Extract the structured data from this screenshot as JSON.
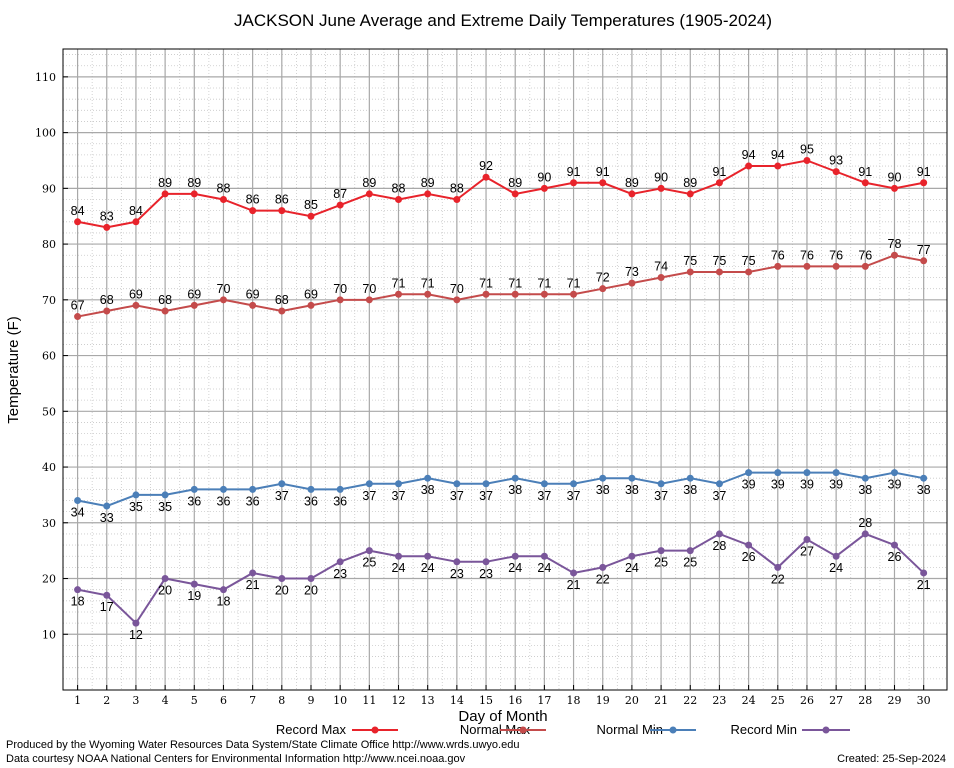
{
  "chart_data": {
    "type": "line",
    "title": "JACKSON June Average and Extreme Daily Temperatures (1905-2024)",
    "xlabel": "Day of Month",
    "ylabel": "Temperature (F)",
    "x": [
      1,
      2,
      3,
      4,
      5,
      6,
      7,
      8,
      9,
      10,
      11,
      12,
      13,
      14,
      15,
      16,
      17,
      18,
      19,
      20,
      21,
      22,
      23,
      24,
      25,
      26,
      27,
      28,
      29,
      30
    ],
    "xlim": [
      0.5,
      30.8
    ],
    "ylim": [
      0,
      115
    ],
    "yticks": [
      10,
      20,
      30,
      40,
      50,
      60,
      70,
      80,
      90,
      100,
      110
    ],
    "grid": true,
    "legend_position": "bottom",
    "series": [
      {
        "name": "Record Max",
        "color": "#e8232b",
        "values": [
          84,
          83,
          84,
          89,
          89,
          88,
          86,
          86,
          85,
          87,
          89,
          88,
          89,
          88,
          92,
          89,
          90,
          91,
          91,
          89,
          90,
          89,
          91,
          94,
          94,
          95,
          93,
          91,
          90,
          91
        ],
        "labels_below": []
      },
      {
        "name": "Normal Max",
        "color": "#c44b4b",
        "values": [
          67,
          68,
          69,
          68,
          69,
          70,
          69,
          68,
          69,
          70,
          70,
          71,
          71,
          70,
          71,
          71,
          71,
          71,
          72,
          73,
          74,
          75,
          75,
          75,
          76,
          76,
          76,
          76,
          78,
          77
        ],
        "labels_below": []
      },
      {
        "name": "Normal Min",
        "color": "#4b7fb8",
        "values": [
          34,
          33,
          35,
          35,
          36,
          36,
          36,
          37,
          36,
          36,
          37,
          37,
          38,
          37,
          37,
          38,
          37,
          37,
          38,
          38,
          37,
          38,
          37,
          39,
          39,
          39,
          39,
          38,
          39,
          38
        ],
        "labels_below": [
          1,
          2,
          3,
          4,
          5,
          6,
          7,
          8,
          9,
          10,
          11,
          12,
          13,
          14,
          15,
          16,
          17,
          18,
          19,
          20,
          21,
          22,
          23,
          24,
          25,
          26,
          27,
          28,
          29,
          30
        ]
      },
      {
        "name": "Record Min",
        "color": "#7a569a",
        "values": [
          18,
          17,
          12,
          20,
          19,
          18,
          21,
          20,
          20,
          23,
          25,
          24,
          24,
          23,
          23,
          24,
          24,
          21,
          22,
          24,
          25,
          25,
          28,
          26,
          22,
          27,
          24,
          28,
          26,
          21
        ],
        "labels_below": [
          1,
          2,
          3,
          4,
          5,
          6,
          7,
          8,
          9,
          10,
          11,
          12,
          13,
          14,
          15,
          16,
          17,
          18,
          19,
          20,
          21,
          22,
          23,
          24,
          25,
          26,
          27,
          29,
          30
        ]
      }
    ]
  },
  "footer": {
    "produced_by": "Produced by the Wyoming Water Resources Data System/State Climate Office http://www.wrds.uwyo.edu",
    "data_courtesy": "Data courtesy NOAA National Centers for Environmental Information http://www.ncei.noaa.gov",
    "created": "Created:  25-Sep-2024"
  }
}
